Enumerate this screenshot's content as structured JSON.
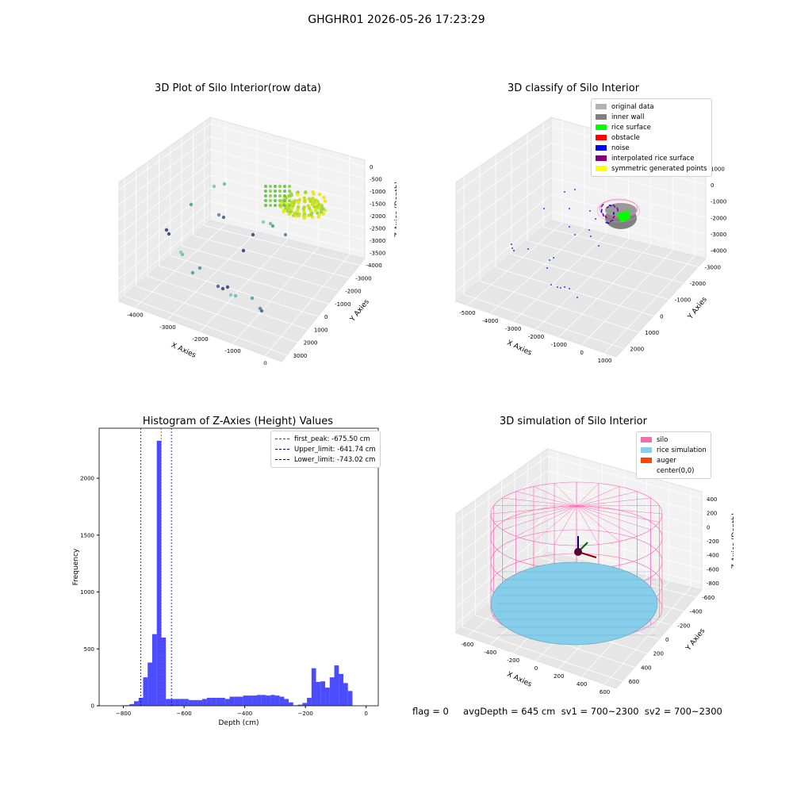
{
  "suptitle": "GHGHR01 2026-05-26 17:23:29",
  "panels": {
    "raw": {
      "title": "3D Plot of Silo Interior(row data)",
      "xlabel": "X Axies",
      "ylabel": "Y Axies",
      "zlabel": "Z Axies (Depth)",
      "xticks": [
        "-4000",
        "-3000",
        "-2000",
        "-1000",
        "0"
      ],
      "yticks": [
        "3000",
        "2000",
        "1000",
        "0",
        "-1000",
        "-2000",
        "-3000",
        "-4000"
      ],
      "zticks": [
        "0",
        "-500",
        "-1000",
        "-1500",
        "-2000",
        "-2500",
        "-3000",
        "-3500"
      ]
    },
    "classify": {
      "title": "3D classify of Silo Interior",
      "xlabel": "X Axies",
      "ylabel": "Y Axies",
      "zlabel": "Z Axies (Depth)",
      "xticks": [
        "-5000",
        "-4000",
        "-3000",
        "-2000",
        "-1000",
        "0",
        "1000"
      ],
      "yticks": [
        "2000",
        "1000",
        "0",
        "-1000",
        "-2000",
        "-3000"
      ],
      "zticks": [
        "1000",
        "0",
        "-1000",
        "-2000",
        "-3000",
        "-4000"
      ],
      "legend": [
        {
          "label": "original data",
          "color": "#b3b3b3"
        },
        {
          "label": "inner wall",
          "color": "#808080"
        },
        {
          "label": "rice surface",
          "color": "#00ff00"
        },
        {
          "label": "obstacle",
          "color": "#ff0000"
        },
        {
          "label": "noise",
          "color": "#0000ff"
        },
        {
          "label": "interpolated rice surface",
          "color": "#800080"
        },
        {
          "label": "symmetric generated points",
          "color": "#ffff00"
        }
      ]
    },
    "histogram": {
      "title": "Histogram of Z-Axies (Height) Values",
      "xlabel": "Depth (cm)",
      "ylabel": "Frequency",
      "legend": [
        {
          "label": "first_peak: -675.50 cm",
          "color": "#ff0000"
        },
        {
          "label": "Upper_limit: -641.74 cm",
          "color": "#0000cc"
        },
        {
          "label": "Lower_limit: -743.02 cm",
          "color": "#0000cc"
        }
      ]
    },
    "simulation": {
      "title": "3D simulation of Silo Interior",
      "xlabel": "X Axies",
      "ylabel": "Y Axies",
      "zlabel": "Z Axies (Depth)",
      "xticks": [
        "-600",
        "-400",
        "-200",
        "0",
        "200",
        "400",
        "600"
      ],
      "yticks": [
        "600",
        "400",
        "200",
        "0",
        "-200",
        "-400",
        "-600"
      ],
      "zticks": [
        "400",
        "200",
        "0",
        "-200",
        "-400",
        "-600",
        "-800"
      ],
      "legend": [
        {
          "label": "silo",
          "color": "#ff69b4"
        },
        {
          "label": "rice simulation",
          "color": "#87ceeb"
        },
        {
          "label": "auger",
          "color": "#ff4500"
        },
        {
          "label": "center(0,0)",
          "color": "#ffffff"
        }
      ]
    }
  },
  "footer": "flag = 0     avgDepth = 645 cm  sv1 = 700~2300  sv2 = 700~2300",
  "chart_data": [
    {
      "type": "scatter",
      "title": "3D Plot of Silo Interior(row data)",
      "xlabel": "X Axies",
      "ylabel": "Y Axies",
      "zlabel": "Z Axies (Depth)",
      "xlim": [
        -4200,
        300
      ],
      "ylim": [
        -4000,
        3500
      ],
      "zlim": [
        -3700,
        100
      ]
    },
    {
      "type": "scatter",
      "title": "3D classify of Silo Interior",
      "xlabel": "X Axies",
      "ylabel": "Y Axies",
      "zlabel": "Z Axies (Depth)",
      "xlim": [
        -5000,
        1500
      ],
      "ylim": [
        -3500,
        2500
      ],
      "zlim": [
        -4500,
        1200
      ],
      "series": [
        {
          "name": "original data"
        },
        {
          "name": "inner wall"
        },
        {
          "name": "rice surface"
        },
        {
          "name": "obstacle"
        },
        {
          "name": "noise"
        },
        {
          "name": "interpolated rice surface"
        },
        {
          "name": "symmetric generated points"
        }
      ]
    },
    {
      "type": "bar",
      "title": "Histogram of Z-Axies (Height) Values",
      "xlabel": "Depth (cm)",
      "ylabel": "Frequency",
      "xlim": [
        -880,
        40
      ],
      "ylim": [
        0,
        2440
      ],
      "xticks": [
        -800,
        -600,
        -400,
        -200,
        0
      ],
      "yticks": [
        0,
        500,
        1000,
        1500,
        2000
      ],
      "bin_width": 15,
      "bins_start": [
        -810,
        -795,
        -780,
        -765,
        -750,
        -735,
        -720,
        -705,
        -690,
        -675,
        -660,
        -645,
        -630,
        -615,
        -600,
        -585,
        -570,
        -555,
        -540,
        -525,
        -510,
        -495,
        -480,
        -465,
        -450,
        -435,
        -420,
        -405,
        -390,
        -375,
        -360,
        -345,
        -330,
        -315,
        -300,
        -285,
        -270,
        -255,
        -240,
        -225,
        -210,
        -195,
        -180,
        -165,
        -150,
        -135,
        -120,
        -105,
        -90,
        -75,
        -60,
        -45,
        -30,
        -15
      ],
      "values": [
        2,
        5,
        15,
        40,
        70,
        250,
        380,
        630,
        2330,
        600,
        60,
        60,
        60,
        60,
        60,
        50,
        50,
        50,
        60,
        70,
        70,
        70,
        70,
        60,
        80,
        80,
        80,
        90,
        90,
        90,
        95,
        95,
        90,
        95,
        90,
        80,
        60,
        30,
        5,
        10,
        25,
        70,
        330,
        210,
        215,
        160,
        250,
        355,
        280,
        200,
        130,
        0,
        0,
        0
      ],
      "lines": [
        {
          "name": "first_peak: -675.50 cm",
          "x": -675.5,
          "color": "#ff0000"
        },
        {
          "name": "Upper_limit: -641.74 cm",
          "x": -641.74,
          "color": "#0000cc"
        },
        {
          "name": "Lower_limit: -743.02 cm",
          "x": -743.02,
          "color": "#0000cc"
        }
      ]
    },
    {
      "type": "scatter",
      "title": "3D simulation of Silo Interior",
      "xlabel": "X Axies",
      "ylabel": "Y Axies",
      "zlabel": "Z Axies (Depth)",
      "xlim": [
        -700,
        700
      ],
      "ylim": [
        -700,
        700
      ],
      "zlim": [
        -900,
        500
      ],
      "series": [
        {
          "name": "silo"
        },
        {
          "name": "rice simulation"
        },
        {
          "name": "auger"
        },
        {
          "name": "center(0,0)"
        }
      ]
    }
  ]
}
